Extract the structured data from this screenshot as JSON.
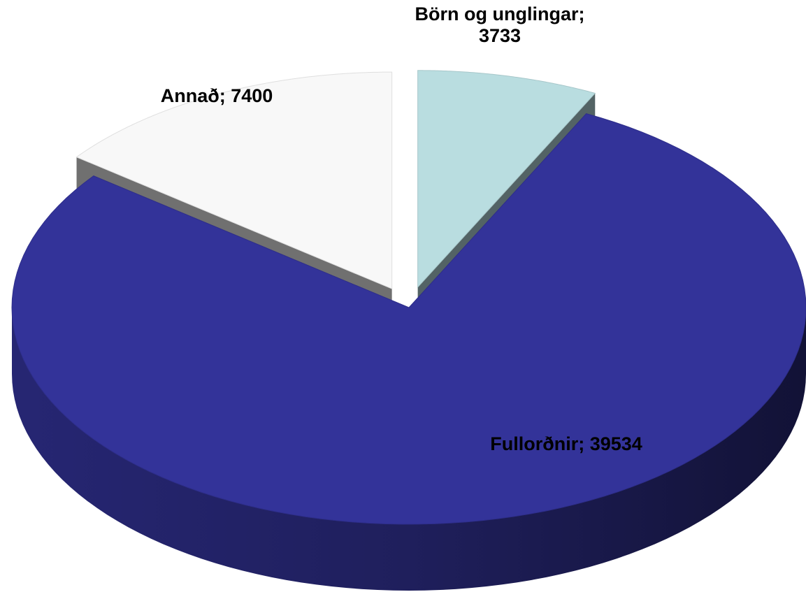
{
  "chart_data": {
    "type": "pie",
    "values": [
      3733,
      39534,
      7400
    ],
    "value_labels": [
      "Börn og unglingar; 3733",
      "Fullorðnir; 39534",
      "Annað; 7400"
    ],
    "colors": [
      "#b9dde0",
      "#333399",
      "#f8f8f8"
    ]
  }
}
